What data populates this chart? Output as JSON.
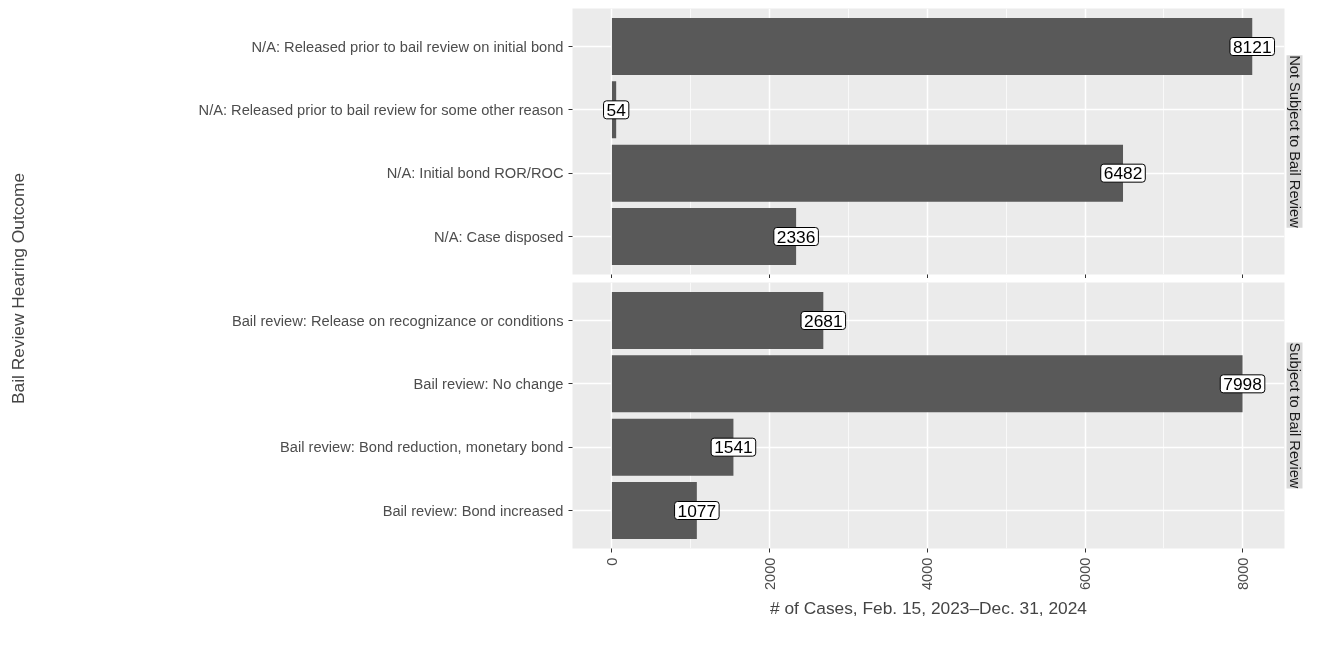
{
  "chart_data": [
    {
      "type": "bar",
      "orientation": "horizontal",
      "title": "Not Subject to Bail Review",
      "ylabel": "Bail Review Hearing Outcome",
      "categories": [
        "N/A: Released prior to bail review on initial bond",
        "N/A: Released prior to bail review for some other reason",
        "N/A: Initial bond ROR/ROC",
        "N/A: Case disposed"
      ],
      "values": [
        8121,
        54,
        6482,
        2336
      ],
      "color": "#595959",
      "data_labels": true,
      "xlim": [
        -500,
        8530
      ],
      "xticks": [
        0,
        2000,
        4000,
        6000,
        8000
      ],
      "grid": true,
      "tick_labels": "y"
    },
    {
      "type": "bar",
      "orientation": "horizontal",
      "title": "Subject to Bail Review",
      "xlabel": "# of Cases, Feb. 15, 2023–Dec. 31, 2024",
      "categories": [
        "Bail review: Release on recognizance or conditions",
        "Bail review: No change",
        "Bail review: Bond reduction, monetary bond",
        "Bail review: Bond increased"
      ],
      "values": [
        2681,
        7998,
        1541,
        1077
      ],
      "color": "#595959",
      "data_labels": true,
      "xlim": [
        -500,
        8530
      ],
      "xticks": [
        0,
        2000,
        4000,
        6000,
        8000
      ],
      "grid": true
    }
  ]
}
